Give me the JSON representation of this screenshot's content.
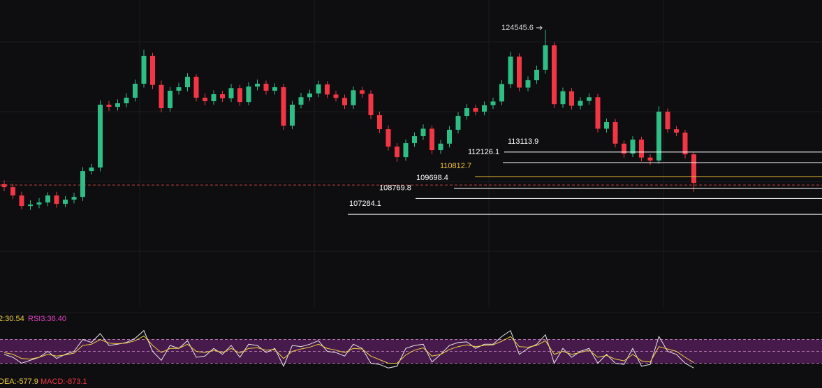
{
  "chart_data": {
    "type": "candlestick",
    "open": [
      110100,
      109831,
      109046,
      108065,
      108196,
      108392,
      109046,
      108261,
      108654,
      108915,
      111335,
      111662,
      117548,
      117350,
      117679,
      118202,
      119510,
      122126,
      119400,
      117221,
      118856,
      119183,
      120164,
      118202,
      117875,
      118529,
      118150,
      119100,
      117800,
      119250,
      119510,
      118856,
      119183,
      115586,
      117548,
      118250,
      118600,
      119450,
      118500,
      118180,
      117500,
      118900,
      118560,
      116567,
      115259,
      113624,
      112643,
      113951,
      114605,
      115300,
      113297,
      113900,
      115200,
      116500,
      117221,
      116894,
      117500,
      117850,
      119480,
      122050,
      119150,
      119837,
      120818,
      123107,
      117600,
      118800,
      117450,
      117900,
      118250,
      115300,
      115913,
      113900,
      112970,
      114278,
      112600,
      112316,
      116894,
      115250,
      114932,
      112900
    ],
    "high": [
      110450,
      110150,
      109400,
      108600,
      108800,
      109350,
      109400,
      109000,
      109300,
      111700,
      112000,
      117950,
      117900,
      118050,
      118600,
      119900,
      122700,
      122400,
      119800,
      119200,
      119600,
      120500,
      120400,
      118600,
      118900,
      118850,
      119500,
      119400,
      119650,
      119900,
      119800,
      119550,
      119500,
      117900,
      118650,
      118950,
      119800,
      119750,
      118850,
      118500,
      119250,
      119200,
      118900,
      116900,
      115600,
      113950,
      114300,
      114950,
      115700,
      115600,
      114250,
      115550,
      116850,
      117600,
      117550,
      117850,
      118200,
      119850,
      122500,
      122350,
      120200,
      121200,
      124545.6,
      123400,
      119150,
      119100,
      118250,
      118600,
      118550,
      116250,
      116200,
      114200,
      114600,
      114550,
      112900,
      117400,
      117200,
      115550,
      115200,
      113150
    ],
    "low": [
      109450,
      108700,
      107750,
      107700,
      107850,
      108050,
      107900,
      107950,
      108300,
      108550,
      111000,
      111300,
      116950,
      117000,
      117300,
      117850,
      119150,
      119000,
      116850,
      116900,
      118500,
      118800,
      117850,
      117500,
      117550,
      117800,
      117800,
      117450,
      117500,
      118900,
      118500,
      118500,
      115200,
      115250,
      117200,
      117900,
      118250,
      118150,
      117850,
      117150,
      117150,
      118200,
      116200,
      114900,
      113250,
      112200,
      112300,
      113600,
      114250,
      112900,
      112950,
      113550,
      114850,
      116150,
      116550,
      116550,
      117150,
      117500,
      119100,
      118800,
      118800,
      119500,
      120450,
      117250,
      117250,
      117100,
      117100,
      117550,
      114950,
      114950,
      113550,
      112600,
      112650,
      112250,
      111900,
      112000,
      114900,
      114600,
      112500,
      109400
    ],
    "close": [
      109831,
      109046,
      108065,
      108196,
      108392,
      109046,
      108261,
      108654,
      108915,
      111335,
      111662,
      117548,
      117350,
      117679,
      118202,
      119510,
      122126,
      119400,
      117221,
      118856,
      119183,
      120164,
      118202,
      117875,
      118529,
      118150,
      119100,
      117800,
      119250,
      119510,
      118856,
      119183,
      115586,
      117548,
      118250,
      118600,
      119450,
      118500,
      118180,
      117500,
      118900,
      118560,
      116567,
      115259,
      113624,
      112643,
      113951,
      114605,
      115300,
      113297,
      113900,
      115200,
      116500,
      117221,
      116894,
      117500,
      117850,
      119480,
      122050,
      119150,
      119837,
      120818,
      123107,
      117600,
      118800,
      117450,
      117900,
      118250,
      115300,
      115913,
      113900,
      112970,
      114278,
      112600,
      112316,
      116894,
      115250,
      114932,
      112900,
      110223
    ],
    "ylim": [
      98600,
      127350
    ],
    "up_color": "#2ebd85",
    "down_color": "#f23645",
    "peak": 124545.6,
    "last_price": 110030,
    "price_lines": [
      {
        "value": 113113.9,
        "color": "#ffffff"
      },
      {
        "value": 112126.1,
        "color": "#ffffff"
      },
      {
        "value": 110812.7,
        "color": "#f0c23a"
      },
      {
        "value": 109698.4,
        "color": "#ffffff"
      },
      {
        "value": 108769.8,
        "color": "#ffffff"
      },
      {
        "value": 107284.1,
        "color": "#ffffff"
      }
    ]
  },
  "indicator": {
    "type": "line",
    "ylim": [
      0,
      100
    ],
    "band": [
      30,
      70
    ],
    "levels": [
      30,
      50,
      70
    ],
    "series": [
      {
        "color": "#e8e8e8",
        "values": [
          45,
          40,
          30,
          35,
          40,
          50,
          38,
          45,
          50,
          70,
          65,
          80,
          60,
          62,
          65,
          72,
          85,
          50,
          35,
          60,
          55,
          68,
          40,
          42,
          55,
          45,
          60,
          40,
          62,
          60,
          48,
          55,
          25,
          60,
          58,
          62,
          68,
          50,
          48,
          42,
          62,
          55,
          30,
          28,
          22,
          25,
          55,
          60,
          62,
          32,
          45,
          60,
          65,
          66,
          55,
          62,
          62,
          75,
          85,
          45,
          55,
          62,
          78,
          30,
          55,
          40,
          50,
          55,
          30,
          45,
          30,
          28,
          55,
          25,
          28,
          75,
          50,
          45,
          30,
          22
        ]
      },
      {
        "color": "#f0d040",
        "values": [
          48,
          45,
          38,
          37,
          40,
          45,
          42,
          44,
          47,
          60,
          62,
          70,
          64,
          63,
          64,
          68,
          76,
          60,
          48,
          55,
          55,
          62,
          50,
          48,
          52,
          48,
          55,
          47,
          55,
          56,
          52,
          53,
          38,
          50,
          54,
          57,
          62,
          55,
          52,
          48,
          55,
          54,
          42,
          36,
          30,
          30,
          44,
          52,
          56,
          42,
          45,
          53,
          58,
          61,
          58,
          60,
          61,
          67,
          75,
          58,
          57,
          60,
          68,
          45,
          50,
          45,
          48,
          52,
          40,
          43,
          37,
          34,
          45,
          34,
          32,
          58,
          54,
          50,
          40,
          31
        ]
      }
    ],
    "legend": [
      {
        "text": "2:30.54",
        "color": "#f0d040"
      },
      {
        "text": "RSI3:36.40",
        "color": "#e040c0"
      }
    ],
    "footer": [
      {
        "text": "DEA:-577.9",
        "color": "#f0d040"
      },
      {
        "text": "MACD:-873.1",
        "color": "#f23645"
      }
    ]
  }
}
